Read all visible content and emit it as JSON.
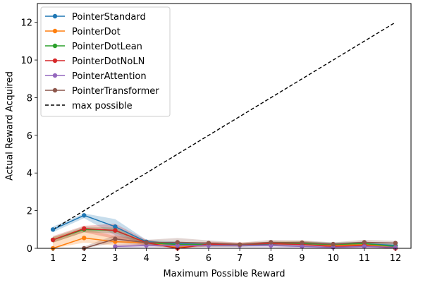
{
  "chart_data": {
    "type": "line",
    "title": "",
    "xlabel": "Maximum Possible Reward",
    "ylabel": "Actual Reward Acquired",
    "x": [
      1,
      2,
      3,
      4,
      5,
      6,
      7,
      8,
      9,
      10,
      11,
      12
    ],
    "xlim": [
      0.5,
      12.5
    ],
    "ylim": [
      0,
      13
    ],
    "xticks": [
      "1",
      "2",
      "3",
      "4",
      "5",
      "6",
      "7",
      "8",
      "9",
      "10",
      "11",
      "12"
    ],
    "yticks": [
      0,
      2,
      4,
      6,
      8,
      10,
      12
    ],
    "grid": false,
    "legend_position": "top-left",
    "series": [
      {
        "name": "PointerStandard",
        "color": "#1f77b4",
        "x": [
          1,
          2,
          3,
          4,
          5,
          6,
          7,
          8,
          9,
          10,
          11,
          12
        ],
        "values": [
          1.0,
          1.75,
          1.15,
          0.35,
          0.25,
          0.2,
          0.18,
          0.22,
          0.28,
          0.22,
          0.25,
          0.15
        ],
        "lower": [
          0.85,
          1.6,
          0.7,
          0.2,
          0.1,
          0.1,
          0.1,
          0.12,
          0.15,
          0.12,
          0.12,
          0.05
        ],
        "upper": [
          1.15,
          1.85,
          1.55,
          0.45,
          0.35,
          0.3,
          0.25,
          0.3,
          0.38,
          0.3,
          0.35,
          0.25
        ]
      },
      {
        "name": "PointerDot",
        "color": "#ff7f0e",
        "x": [
          1,
          2,
          3,
          4,
          5,
          6,
          7,
          8,
          9,
          10,
          11,
          12
        ],
        "values": [
          0.0,
          0.55,
          0.35,
          0.3,
          0.05,
          0.2,
          0.2,
          0.25,
          0.3,
          0.15,
          0.2,
          0.05
        ],
        "lower": [
          0.0,
          0.3,
          0.15,
          0.15,
          0.0,
          0.1,
          0.1,
          0.15,
          0.2,
          0.05,
          0.1,
          0.0
        ],
        "upper": [
          0.6,
          1.05,
          0.65,
          0.45,
          0.15,
          0.3,
          0.3,
          0.35,
          0.4,
          0.25,
          0.3,
          0.15
        ]
      },
      {
        "name": "PointerDotLean",
        "color": "#2ca02c",
        "x": [
          1,
          2,
          3,
          4,
          5,
          6,
          7,
          8,
          9,
          10,
          11,
          12
        ],
        "values": [
          0.45,
          1.0,
          0.95,
          0.3,
          0.2,
          0.2,
          0.18,
          0.25,
          0.25,
          0.2,
          0.25,
          0.1
        ],
        "lower": [
          0.3,
          0.85,
          0.8,
          0.2,
          0.1,
          0.1,
          0.1,
          0.15,
          0.15,
          0.1,
          0.15,
          0.02
        ],
        "upper": [
          0.6,
          1.15,
          1.1,
          0.4,
          0.3,
          0.3,
          0.25,
          0.35,
          0.35,
          0.3,
          0.35,
          0.2
        ]
      },
      {
        "name": "PointerDotNoLN",
        "color": "#d62728",
        "x": [
          1,
          2,
          3,
          4,
          5,
          6,
          7,
          8,
          9,
          10,
          11,
          12
        ],
        "values": [
          0.45,
          1.05,
          0.95,
          0.3,
          0.0,
          0.22,
          0.2,
          0.25,
          0.2,
          0.1,
          0.15,
          0.0
        ],
        "lower": [
          0.3,
          0.85,
          0.5,
          0.15,
          0.0,
          0.1,
          0.1,
          0.15,
          0.1,
          0.0,
          0.05,
          0.0
        ],
        "upper": [
          0.65,
          1.2,
          1.3,
          0.45,
          0.2,
          0.35,
          0.3,
          0.35,
          0.3,
          0.2,
          0.25,
          0.1
        ]
      },
      {
        "name": "PointerAttention",
        "color": "#9467bd",
        "x": [
          3,
          4,
          5,
          6,
          7,
          8,
          9,
          10,
          11,
          12
        ],
        "values": [
          0.1,
          0.15,
          0.15,
          0.15,
          0.15,
          0.15,
          0.1,
          0.05,
          0.1,
          0.05
        ],
        "lower": [
          0.0,
          0.05,
          0.05,
          0.05,
          0.05,
          0.05,
          0.0,
          0.0,
          0.0,
          0.0
        ],
        "upper": [
          0.2,
          0.25,
          0.25,
          0.25,
          0.25,
          0.25,
          0.2,
          0.15,
          0.2,
          0.15
        ]
      },
      {
        "name": "PointerTransformer",
        "color": "#8c564b",
        "x": [
          2,
          3,
          4,
          5,
          6,
          7,
          8,
          9,
          10,
          11,
          12
        ],
        "values": [
          0.0,
          0.5,
          0.3,
          0.32,
          0.28,
          0.2,
          0.32,
          0.3,
          0.22,
          0.32,
          0.28
        ],
        "lower": [
          0.0,
          0.3,
          0.15,
          0.15,
          0.15,
          0.1,
          0.2,
          0.2,
          0.12,
          0.2,
          0.15
        ],
        "upper": [
          0.1,
          0.7,
          0.45,
          0.55,
          0.42,
          0.3,
          0.45,
          0.42,
          0.32,
          0.45,
          0.4
        ]
      },
      {
        "name": "max possible",
        "color": "#000000",
        "dashed": true,
        "x": [
          1,
          12
        ],
        "values": [
          1,
          12
        ]
      }
    ]
  }
}
